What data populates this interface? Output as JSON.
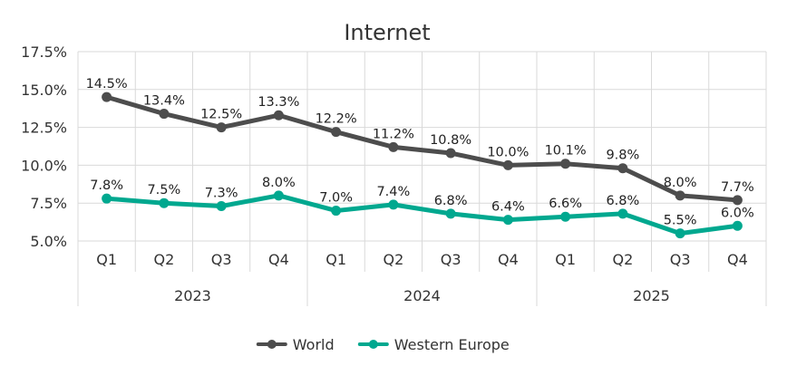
{
  "chart_data": {
    "type": "line",
    "title": "Internet",
    "x": [
      "Q1",
      "Q2",
      "Q3",
      "Q4",
      "Q1",
      "Q2",
      "Q3",
      "Q4",
      "Q1",
      "Q2",
      "Q3",
      "Q4"
    ],
    "groups": [
      {
        "label": "2023",
        "count": 4
      },
      {
        "label": "2024",
        "count": 4
      },
      {
        "label": "2025",
        "count": 4
      }
    ],
    "series": [
      {
        "name": "World",
        "color": "#4d4d4d",
        "values": [
          14.5,
          13.4,
          12.5,
          13.3,
          12.2,
          11.2,
          10.8,
          10.0,
          10.1,
          9.8,
          8.0,
          7.7
        ],
        "labels": [
          "14.5%",
          "13.4%",
          "12.5%",
          "13.3%",
          "12.2%",
          "11.2%",
          "10.8%",
          "10.0%",
          "10.1%",
          "9.8%",
          "8.0%",
          "7.7%"
        ]
      },
      {
        "name": "Western Europe",
        "color": "#00a88f",
        "values": [
          7.8,
          7.5,
          7.3,
          8.0,
          7.0,
          7.4,
          6.8,
          6.4,
          6.6,
          6.8,
          5.5,
          6.0
        ],
        "labels": [
          "7.8%",
          "7.5%",
          "7.3%",
          "8.0%",
          "7.0%",
          "7.4%",
          "6.8%",
          "6.4%",
          "6.6%",
          "6.8%",
          "5.5%",
          "6.0%"
        ]
      }
    ],
    "ylim": [
      5.0,
      17.5
    ],
    "yticks": [
      5.0,
      7.5,
      10.0,
      12.5,
      15.0,
      17.5
    ],
    "ytick_labels": [
      "5.0%",
      "7.5%",
      "10.0%",
      "12.5%",
      "15.0%",
      "17.5%"
    ],
    "grid": true,
    "legend_position": "bottom"
  }
}
